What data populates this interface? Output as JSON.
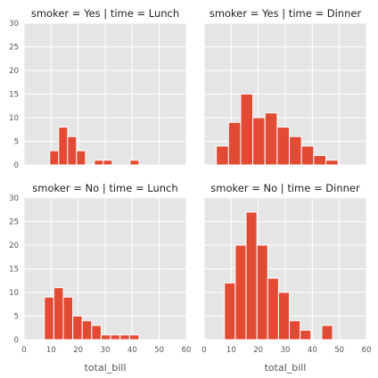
{
  "chart_data": {
    "type": "bar",
    "variant": "facet-histogram",
    "xlabel": "total_bill",
    "ylabel": "",
    "xlim": [
      0,
      60
    ],
    "ylim": [
      0,
      30
    ],
    "xticks": [
      0,
      10,
      20,
      30,
      40,
      50,
      60
    ],
    "yticks": [
      0,
      5,
      10,
      15,
      20,
      25,
      30
    ],
    "grid": true,
    "bar_color": "#e24a33",
    "panel_background": "#e5e5e5",
    "panels": [
      {
        "title": "smoker = Yes | time = Lunch",
        "bins": [
          {
            "x0": 9.5,
            "x1": 12.8,
            "count": 3
          },
          {
            "x0": 12.8,
            "x1": 16.1,
            "count": 8
          },
          {
            "x0": 16.1,
            "x1": 19.4,
            "count": 6
          },
          {
            "x0": 19.4,
            "x1": 22.7,
            "count": 3
          },
          {
            "x0": 22.7,
            "x1": 26.0,
            "count": 0
          },
          {
            "x0": 26.0,
            "x1": 29.3,
            "count": 1
          },
          {
            "x0": 29.3,
            "x1": 32.6,
            "count": 1
          },
          {
            "x0": 32.6,
            "x1": 35.9,
            "count": 0
          },
          {
            "x0": 35.9,
            "x1": 39.2,
            "count": 0
          },
          {
            "x0": 39.2,
            "x1": 42.5,
            "count": 1
          }
        ]
      },
      {
        "title": "smoker = Yes | time = Dinner",
        "bins": [
          {
            "x0": 4.5,
            "x1": 9.0,
            "count": 4
          },
          {
            "x0": 9.0,
            "x1": 13.5,
            "count": 9
          },
          {
            "x0": 13.5,
            "x1": 18.0,
            "count": 15
          },
          {
            "x0": 18.0,
            "x1": 22.5,
            "count": 10
          },
          {
            "x0": 22.5,
            "x1": 27.0,
            "count": 11
          },
          {
            "x0": 27.0,
            "x1": 31.5,
            "count": 8
          },
          {
            "x0": 31.5,
            "x1": 36.0,
            "count": 6
          },
          {
            "x0": 36.0,
            "x1": 40.5,
            "count": 4
          },
          {
            "x0": 40.5,
            "x1": 45.0,
            "count": 2
          },
          {
            "x0": 45.0,
            "x1": 49.5,
            "count": 1
          }
        ]
      },
      {
        "title": "smoker = No | time = Lunch",
        "bins": [
          {
            "x0": 7.5,
            "x1": 11.0,
            "count": 9
          },
          {
            "x0": 11.0,
            "x1": 14.5,
            "count": 11
          },
          {
            "x0": 14.5,
            "x1": 18.0,
            "count": 9
          },
          {
            "x0": 18.0,
            "x1": 21.5,
            "count": 5
          },
          {
            "x0": 21.5,
            "x1": 25.0,
            "count": 4
          },
          {
            "x0": 25.0,
            "x1": 28.5,
            "count": 3
          },
          {
            "x0": 28.5,
            "x1": 32.0,
            "count": 1
          },
          {
            "x0": 32.0,
            "x1": 35.5,
            "count": 1
          },
          {
            "x0": 35.5,
            "x1": 39.0,
            "count": 1
          },
          {
            "x0": 39.0,
            "x1": 42.5,
            "count": 1
          }
        ]
      },
      {
        "title": "smoker = No | time = Dinner",
        "bins": [
          {
            "x0": 7.5,
            "x1": 11.5,
            "count": 12
          },
          {
            "x0": 11.5,
            "x1": 15.5,
            "count": 20
          },
          {
            "x0": 15.5,
            "x1": 19.5,
            "count": 27
          },
          {
            "x0": 19.5,
            "x1": 23.5,
            "count": 20
          },
          {
            "x0": 23.5,
            "x1": 27.5,
            "count": 13
          },
          {
            "x0": 27.5,
            "x1": 31.5,
            "count": 10
          },
          {
            "x0": 31.5,
            "x1": 35.5,
            "count": 4
          },
          {
            "x0": 35.5,
            "x1": 39.5,
            "count": 2
          },
          {
            "x0": 39.5,
            "x1": 43.5,
            "count": 0
          },
          {
            "x0": 43.5,
            "x1": 47.5,
            "count": 3
          }
        ]
      }
    ]
  }
}
